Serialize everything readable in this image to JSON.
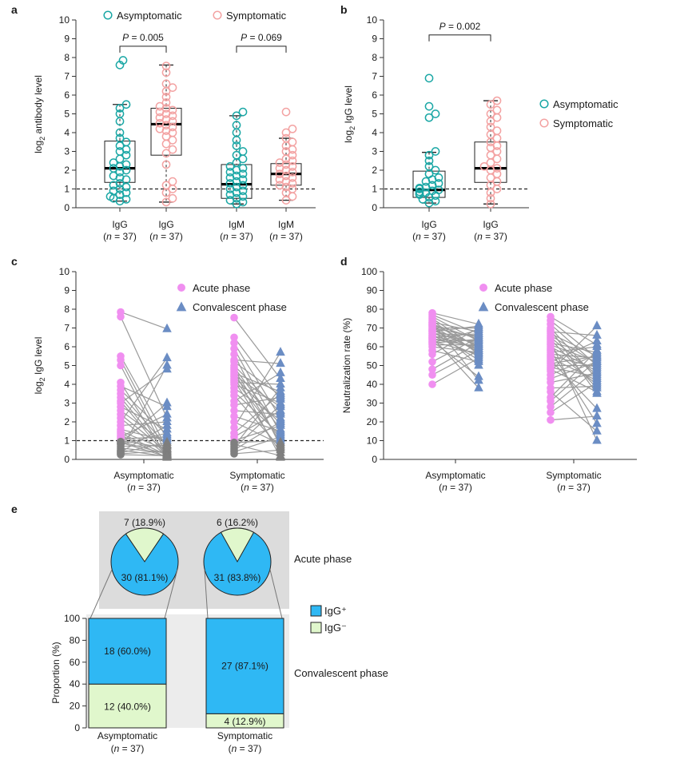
{
  "chart_data": [
    {
      "panel": "a",
      "type": "box",
      "ylabel": "log2 antibody level",
      "ylim": [
        0,
        10
      ],
      "yticks": [
        0,
        1,
        2,
        3,
        4,
        5,
        6,
        7,
        8,
        9,
        10
      ],
      "threshold": 1,
      "legend": [
        "Asymptomatic",
        "Symptomatic"
      ],
      "colors": {
        "Asymptomatic": "#1aa7a5",
        "Symptomatic": "#f3a2a2"
      },
      "groups": [
        {
          "label": "IgG",
          "n": "(n = 37)",
          "series": "Asymptomatic",
          "box": {
            "q1": 1.35,
            "median": 2.1,
            "q3": 3.55,
            "wmin": 0.35,
            "wmax": 5.5
          },
          "points": [
            0.35,
            0.45,
            0.5,
            0.6,
            0.7,
            0.8,
            0.9,
            1.0,
            1.1,
            1.2,
            1.3,
            1.5,
            1.6,
            1.7,
            1.9,
            2.0,
            2.1,
            2.2,
            2.3,
            2.4,
            2.6,
            2.8,
            3.0,
            3.1,
            3.3,
            3.5,
            3.7,
            4.0,
            4.6,
            5.0,
            5.3,
            5.5,
            7.6,
            7.85
          ]
        },
        {
          "label": "IgG",
          "n": "(n = 37)",
          "series": "Symptomatic",
          "box": {
            "q1": 2.8,
            "median": 4.45,
            "q3": 5.3,
            "wmin": 0.3,
            "wmax": 7.6
          },
          "points": [
            0.3,
            0.5,
            0.8,
            1.0,
            1.2,
            1.4,
            2.3,
            2.9,
            3.1,
            3.4,
            3.6,
            3.8,
            4.0,
            4.1,
            4.2,
            4.3,
            4.4,
            4.5,
            4.6,
            4.7,
            4.8,
            4.9,
            5.0,
            5.1,
            5.2,
            5.3,
            5.4,
            5.6,
            5.9,
            6.2,
            6.4,
            6.6,
            7.2,
            7.55
          ]
        },
        {
          "label": "IgM",
          "n": "(n = 37)",
          "series": "Asymptomatic",
          "box": {
            "q1": 0.5,
            "median": 1.25,
            "q3": 2.3,
            "wmin": 0.2,
            "wmax": 4.9
          },
          "points": [
            0.2,
            0.3,
            0.4,
            0.5,
            0.6,
            0.7,
            0.8,
            0.9,
            1.0,
            1.1,
            1.2,
            1.3,
            1.4,
            1.5,
            1.6,
            1.7,
            1.8,
            1.9,
            2.0,
            2.1,
            2.2,
            2.4,
            2.6,
            2.8,
            3.0,
            3.3,
            3.6,
            4.0,
            4.4,
            4.9,
            5.1
          ]
        },
        {
          "label": "IgM",
          "n": "(n = 37)",
          "series": "Symptomatic",
          "box": {
            "q1": 1.2,
            "median": 1.8,
            "q3": 2.35,
            "wmin": 0.4,
            "wmax": 3.7
          },
          "points": [
            0.4,
            0.6,
            0.8,
            1.0,
            1.1,
            1.2,
            1.3,
            1.4,
            1.5,
            1.6,
            1.7,
            1.8,
            1.9,
            2.0,
            2.1,
            2.2,
            2.3,
            2.4,
            2.5,
            2.6,
            2.8,
            3.0,
            3.1,
            3.3,
            3.5,
            3.7,
            4.0,
            4.2,
            5.1
          ]
        }
      ],
      "annotations": [
        {
          "text": "P = 0.005",
          "between": [
            0,
            1
          ],
          "y": 8.6
        },
        {
          "text": "P = 0.069",
          "between": [
            2,
            3
          ],
          "y": 8.6
        }
      ]
    },
    {
      "panel": "b",
      "type": "box",
      "ylabel": "log2 IgG level",
      "ylim": [
        0,
        10
      ],
      "yticks": [
        0,
        1,
        2,
        3,
        4,
        5,
        6,
        7,
        8,
        9,
        10
      ],
      "threshold": 1,
      "legend": [
        "Asymptomatic",
        "Symptomatic"
      ],
      "colors": {
        "Asymptomatic": "#1aa7a5",
        "Symptomatic": "#f3a2a2"
      },
      "groups": [
        {
          "label": "IgG",
          "n": "(n = 37)",
          "series": "Asymptomatic",
          "box": {
            "q1": 0.55,
            "median": 0.95,
            "q3": 1.95,
            "wmin": 0.25,
            "wmax": 2.95
          },
          "points": [
            0.25,
            0.35,
            0.45,
            0.55,
            0.65,
            0.7,
            0.75,
            0.8,
            0.85,
            0.9,
            0.95,
            1.0,
            1.05,
            1.1,
            1.2,
            1.3,
            1.4,
            1.5,
            1.6,
            1.8,
            2.0,
            2.2,
            2.5,
            2.8,
            3.0,
            4.8,
            5.0,
            5.4,
            6.9
          ]
        },
        {
          "label": "IgG",
          "n": "(n = 37)",
          "series": "Symptomatic",
          "box": {
            "q1": 1.35,
            "median": 2.1,
            "q3": 3.5,
            "wmin": 0.2,
            "wmax": 5.7
          },
          "points": [
            0.2,
            0.5,
            0.8,
            1.0,
            1.2,
            1.4,
            1.6,
            1.8,
            2.0,
            2.1,
            2.2,
            2.4,
            2.6,
            2.8,
            3.0,
            3.2,
            3.3,
            3.5,
            3.7,
            3.9,
            4.1,
            4.3,
            4.6,
            4.8,
            5.0,
            5.2,
            5.5,
            5.7
          ]
        }
      ],
      "annotations": [
        {
          "text": "P = 0.002",
          "between": [
            0,
            1
          ],
          "y": 9.2
        }
      ]
    },
    {
      "panel": "c",
      "type": "paired",
      "ylabel": "log2 IgG level",
      "ylim": [
        0,
        10
      ],
      "yticks": [
        0,
        1,
        2,
        3,
        4,
        5,
        6,
        7,
        8,
        9,
        10
      ],
      "threshold": 1,
      "legend": [
        "Acute phase",
        "Convalescent phase"
      ],
      "colors": {
        "acute": "#f08ff0",
        "convalescent": "#6b8dc4",
        "below": "#7f7f7f",
        "line": "#b3b3b3"
      },
      "groups": [
        {
          "label": "Asymptomatic",
          "n": "(n = 37)",
          "acute": [
            7.85,
            7.6,
            5.5,
            5.3,
            5.0,
            4.1,
            3.9,
            3.7,
            3.5,
            3.3,
            3.1,
            3.0,
            2.8,
            2.6,
            2.4,
            2.2,
            2.0,
            1.8,
            1.6,
            1.5,
            1.4,
            1.3,
            1.2,
            1.1,
            1.0,
            0.95,
            0.9,
            0.85,
            0.8,
            0.7,
            0.6,
            0.5,
            0.45,
            0.4,
            0.35,
            0.3,
            0.25
          ],
          "convalescent": [
            6.95,
            5.4,
            5.0,
            4.8,
            3.0,
            2.8,
            2.4,
            2.2,
            2.0,
            1.8,
            1.6,
            1.4,
            1.3,
            1.2,
            1.1,
            1.0,
            0.9,
            0.8,
            0.75,
            0.7,
            0.6,
            0.55,
            0.5,
            0.45,
            0.4,
            0.35,
            0.3,
            0.28,
            0.25,
            0.22,
            0.2,
            0.18,
            0.16,
            0.15,
            0.14,
            0.12,
            0.1
          ]
        },
        {
          "label": "Symptomatic",
          "n": "(n = 37)",
          "acute": [
            7.55,
            6.5,
            6.2,
            5.9,
            5.6,
            5.3,
            5.2,
            5.0,
            4.9,
            4.8,
            4.7,
            4.6,
            4.5,
            4.4,
            4.3,
            4.2,
            4.1,
            4.0,
            3.8,
            3.6,
            3.4,
            3.1,
            2.9,
            2.6,
            2.3,
            2.0,
            1.7,
            1.4,
            1.2,
            1.0,
            0.9,
            0.8,
            0.7,
            0.6,
            0.5,
            0.4,
            0.3
          ],
          "convalescent": [
            5.7,
            5.1,
            4.6,
            4.3,
            4.0,
            3.8,
            3.6,
            3.5,
            3.4,
            3.3,
            3.2,
            3.0,
            2.9,
            2.8,
            2.6,
            2.5,
            2.4,
            2.2,
            2.1,
            2.0,
            1.9,
            1.8,
            1.6,
            1.5,
            1.4,
            1.3,
            1.2,
            1.1,
            1.0,
            0.9,
            0.8,
            0.7,
            0.6,
            0.5,
            0.35,
            0.2,
            0.1
          ]
        }
      ]
    },
    {
      "panel": "d",
      "type": "paired",
      "ylabel": "Neutralization rate (%)",
      "ylim": [
        0,
        100
      ],
      "yticks": [
        0,
        10,
        20,
        30,
        40,
        50,
        60,
        70,
        80,
        90,
        100
      ],
      "legend": [
        "Acute phase",
        "Convalescent phase"
      ],
      "colors": {
        "acute": "#f08ff0",
        "convalescent": "#6b8dc4",
        "line": "#b3b3b3"
      },
      "groups": [
        {
          "label": "Asymptomatic",
          "n": "(n = 37)",
          "acute": [
            78,
            77,
            76,
            75,
            74,
            73,
            73,
            72,
            72,
            71,
            71,
            70,
            70,
            69,
            69,
            68,
            68,
            67,
            67,
            66,
            66,
            65,
            65,
            64,
            64,
            63,
            63,
            62,
            62,
            61,
            60,
            58,
            56,
            52,
            48,
            45,
            40
          ],
          "convalescent": [
            72,
            71,
            70,
            70,
            69,
            68,
            67,
            67,
            66,
            65,
            65,
            64,
            64,
            63,
            63,
            62,
            62,
            61,
            61,
            60,
            60,
            59,
            59,
            58,
            58,
            57,
            57,
            56,
            56,
            55,
            54,
            53,
            52,
            50,
            44,
            42,
            38
          ]
        },
        {
          "label": "Symptomatic",
          "n": "(n = 37)",
          "acute": [
            76,
            74,
            72,
            70,
            69,
            68,
            67,
            66,
            65,
            64,
            63,
            62,
            61,
            60,
            59,
            58,
            57,
            56,
            55,
            54,
            53,
            52,
            51,
            50,
            49,
            48,
            47,
            45,
            43,
            41,
            38,
            36,
            33,
            31,
            28,
            25,
            21
          ],
          "convalescent": [
            71,
            66,
            63,
            61,
            60,
            58,
            57,
            56,
            55,
            55,
            54,
            54,
            53,
            52,
            52,
            51,
            50,
            50,
            49,
            48,
            47,
            46,
            45,
            44,
            43,
            42,
            41,
            40,
            39,
            38,
            36,
            35,
            27,
            23,
            19,
            15,
            10
          ]
        }
      ]
    },
    {
      "panel": "e",
      "type": "pie+stacked-bar",
      "ylabel": "Proportion (%)",
      "ylim": [
        0,
        100
      ],
      "yticks": [
        0,
        20,
        40,
        60,
        80,
        100
      ],
      "legend": [
        "IgG⁺",
        "IgG⁻"
      ],
      "colors": {
        "IgG+": "#2fb8f4",
        "IgG-": "#e0f7cc",
        "panel": "#dcdcdc"
      },
      "row_labels": [
        "Acute phase",
        "Convalescent phase"
      ],
      "groups": [
        {
          "label": "Asymptomatic",
          "n": "(n = 37)",
          "acute": {
            "pos": 30,
            "neg": 7,
            "pos_label": "30 (81.1%)",
            "neg_label": "7 (18.9%)"
          },
          "convalescent": {
            "pos_pct": 60.0,
            "neg_pct": 40.0,
            "pos_label": "18 (60.0%)",
            "neg_label": "12 (40.0%)"
          }
        },
        {
          "label": "Symptomatic",
          "n": "(n = 37)",
          "acute": {
            "pos": 31,
            "neg": 6,
            "pos_label": "31 (83.8%)",
            "neg_label": "6 (16.2%)"
          },
          "convalescent": {
            "pos_pct": 87.1,
            "neg_pct": 12.9,
            "pos_label": "27 (87.1%)",
            "neg_label": "4 (12.9%)"
          }
        }
      ]
    }
  ]
}
